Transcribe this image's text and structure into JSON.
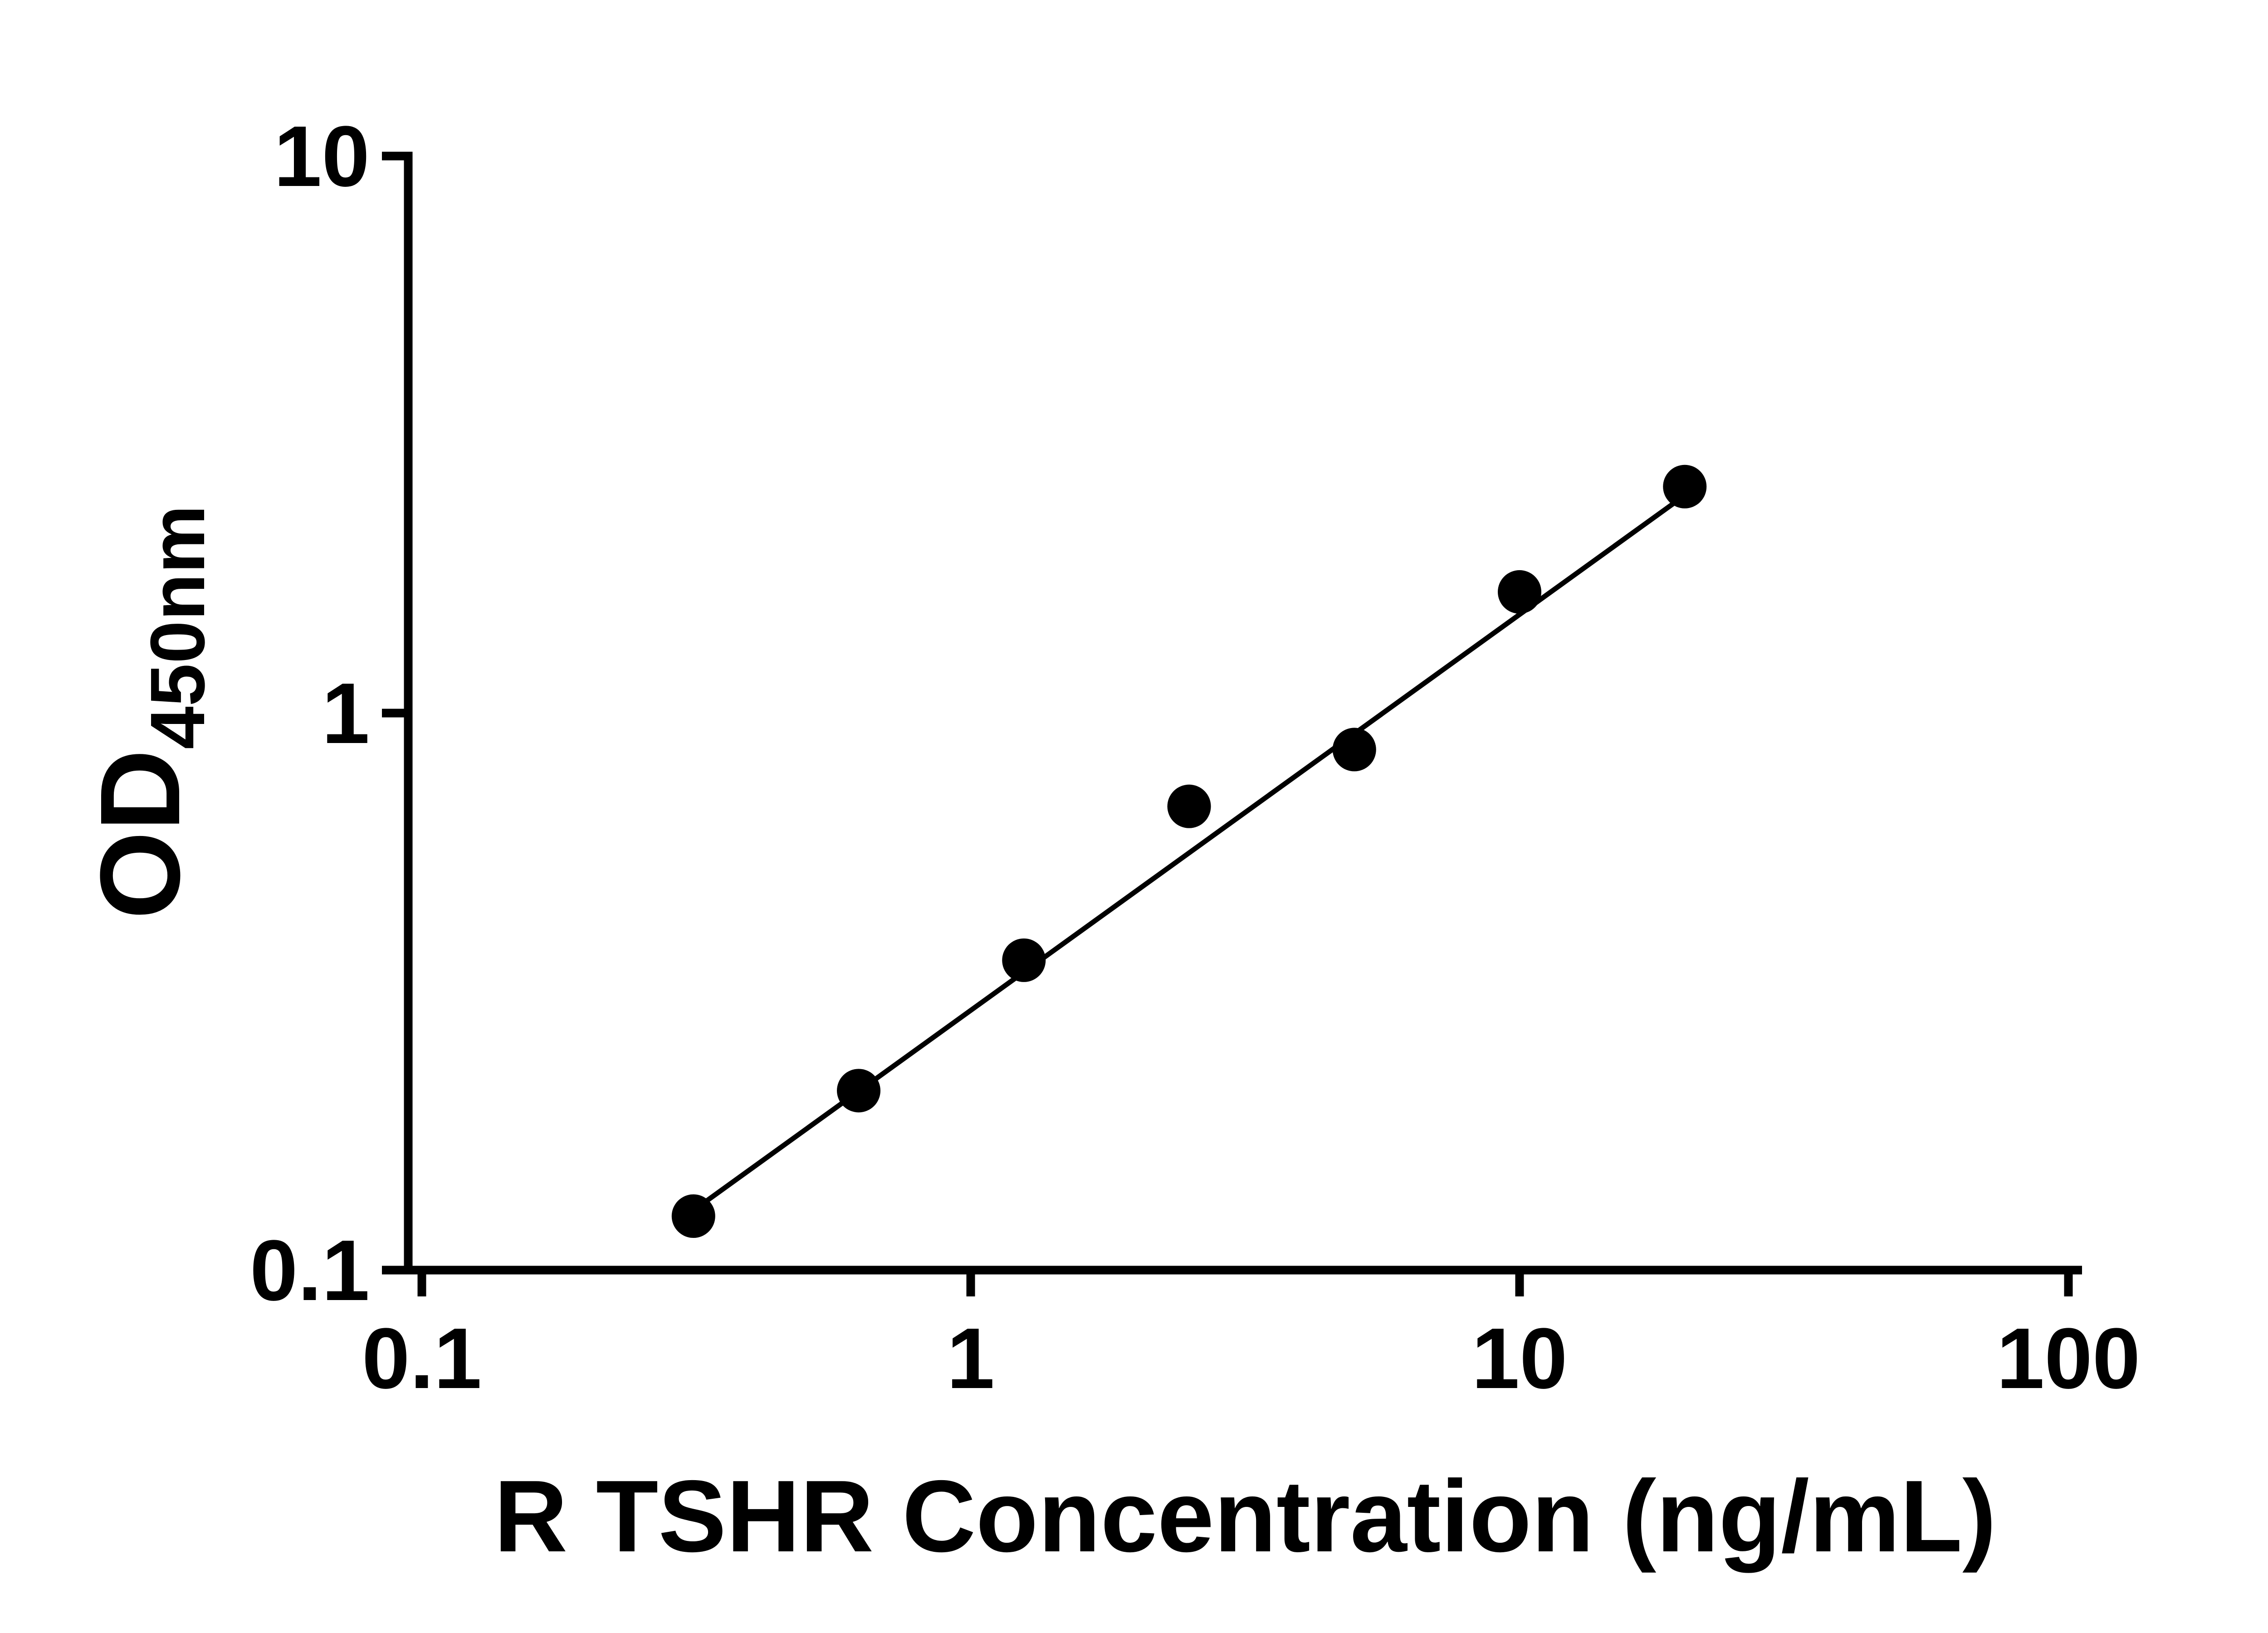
{
  "chart_data": {
    "type": "scatter",
    "title": "",
    "xlabel": "R TSHR Concentration (ng/mL)",
    "ylabel_main": "OD",
    "ylabel_sub": "450nm",
    "x_scale": "log",
    "y_scale": "log",
    "xlim": [
      0.1,
      100
    ],
    "ylim": [
      0.1,
      10
    ],
    "x_ticks": [
      "0.1",
      "1",
      "10",
      "100"
    ],
    "y_ticks": [
      "10",
      "1",
      "0.1"
    ],
    "grid": "off",
    "legend": "none",
    "x": [
      0.3125,
      0.625,
      1.25,
      2.5,
      5,
      10,
      20
    ],
    "y": [
      0.125,
      0.21,
      0.36,
      0.68,
      0.86,
      1.65,
      2.55
    ],
    "fit_line": {
      "x1": 0.3125,
      "y1": 0.128,
      "x2": 20,
      "y2": 2.46
    },
    "marker_color": "#000000",
    "line_color": "#000000",
    "axis_color": "#000000",
    "background": "#ffffff"
  }
}
